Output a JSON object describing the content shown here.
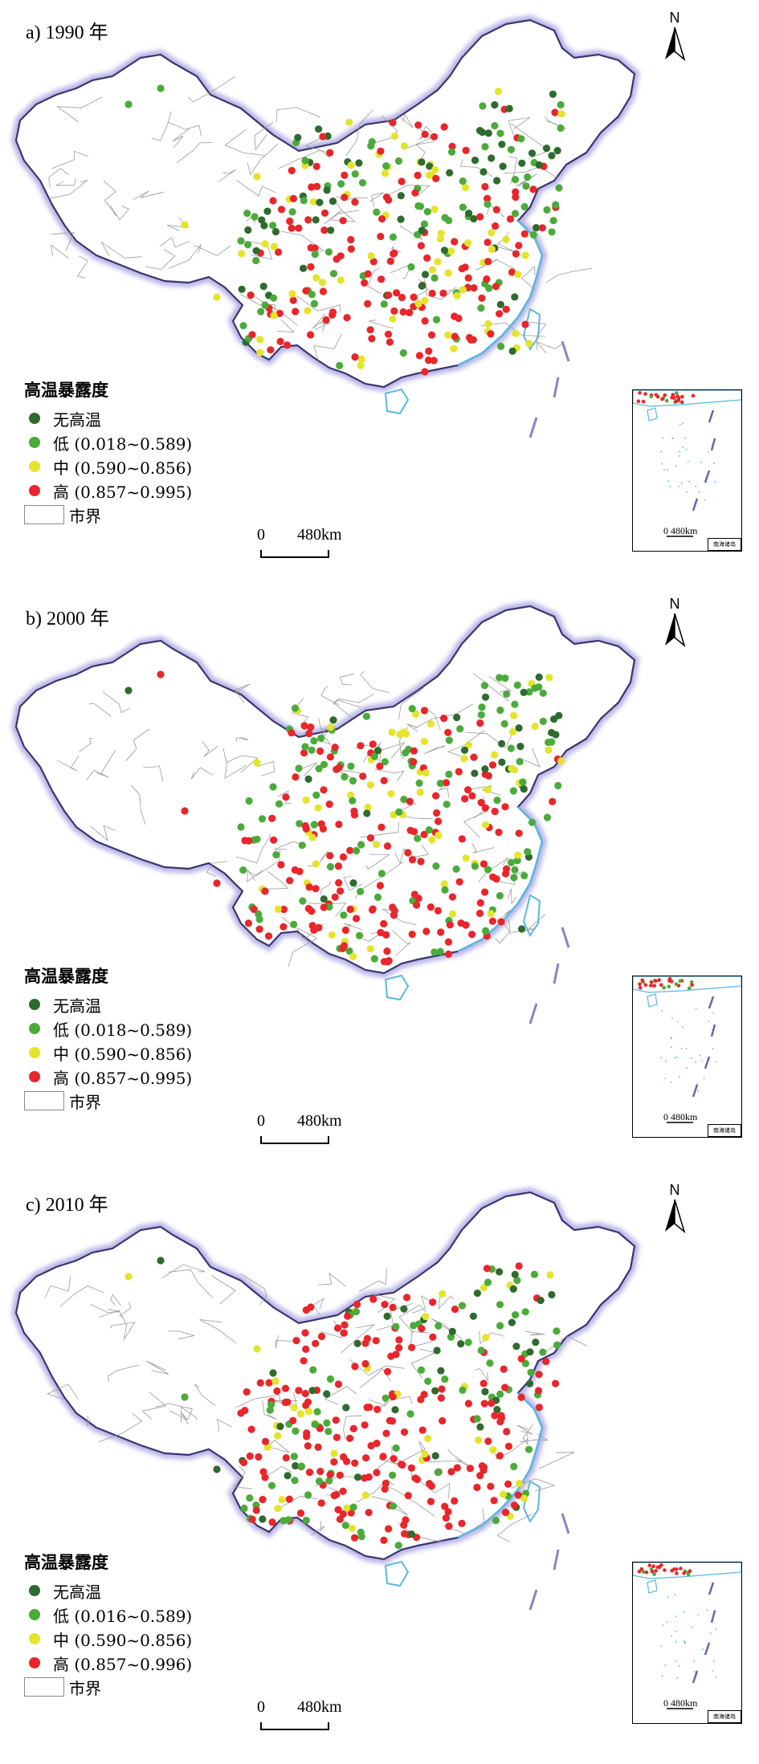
{
  "panels": [
    {
      "title": "a) 1990 年",
      "legend": {
        "title": "高温暴露度",
        "items": [
          {
            "label": "无高温",
            "color": "#2e6b2e"
          },
          {
            "label": "低 (0.018~0.589)",
            "color": "#4bab3a"
          },
          {
            "label": "中 (0.590~0.856)",
            "color": "#e4e42c"
          },
          {
            "label": "高 (0.857~0.995)",
            "color": "#e8262b"
          }
        ],
        "boundary_label": "市界"
      },
      "scale_zero": "0",
      "scale_dist": "480km",
      "inset_scale": "0    480km",
      "inset_label": "南海诸岛",
      "north": "N",
      "mix": {
        "dark": 0.22,
        "green": 0.27,
        "yellow": 0.15,
        "red": 0.36
      }
    },
    {
      "title": "b) 2000 年",
      "legend": {
        "title": "高温暴露度",
        "items": [
          {
            "label": "无高温",
            "color": "#2e6b2e"
          },
          {
            "label": "低 (0.018~0.589)",
            "color": "#4bab3a"
          },
          {
            "label": "中 (0.590~0.856)",
            "color": "#e4e42c"
          },
          {
            "label": "高 (0.857~0.995)",
            "color": "#e8262b"
          }
        ],
        "boundary_label": "市界"
      },
      "scale_zero": "0",
      "scale_dist": "480km",
      "inset_scale": "0    480km",
      "inset_label": "南海诸岛",
      "north": "N",
      "mix": {
        "dark": 0.12,
        "green": 0.3,
        "yellow": 0.18,
        "red": 0.4
      }
    },
    {
      "title": "c) 2010 年",
      "legend": {
        "title": "高温暴露度",
        "items": [
          {
            "label": "无高温",
            "color": "#2e6b2e"
          },
          {
            "label": "低 (0.016~0.589)",
            "color": "#4bab3a"
          },
          {
            "label": "中 (0.590~0.856)",
            "color": "#e4e42c"
          },
          {
            "label": "高 (0.857~0.996)",
            "color": "#e8262b"
          }
        ],
        "boundary_label": "市界"
      },
      "scale_zero": "0",
      "scale_dist": "480km",
      "inset_scale": "0    480km",
      "inset_label": "南海诸岛",
      "north": "N",
      "mix": {
        "dark": 0.12,
        "green": 0.22,
        "yellow": 0.14,
        "red": 0.52
      }
    }
  ],
  "colors": {
    "border_glow": "#b9b6e6",
    "border_line": "#3a3570",
    "internal_line": "#9a9a9a",
    "coast": "#5ab8e0"
  }
}
